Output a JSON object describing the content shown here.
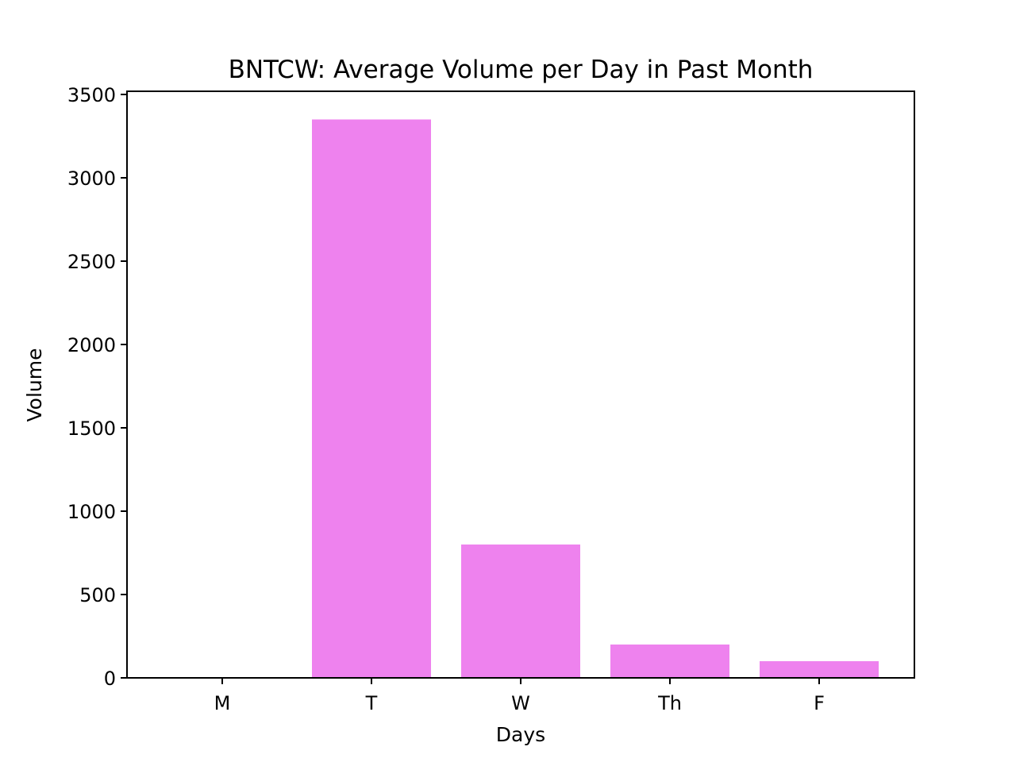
{
  "chart_data": {
    "type": "bar",
    "title": "BNTCW: Average Volume per Day in Past Month",
    "xlabel": "Days",
    "ylabel": "Volume",
    "categories": [
      "M",
      "T",
      "W",
      "Th",
      "F"
    ],
    "values": [
      0,
      3350,
      800,
      200,
      100
    ],
    "ylim": [
      0,
      3500
    ],
    "yticks": [
      0,
      500,
      1000,
      1500,
      2000,
      2500,
      3000,
      3500
    ],
    "bar_color": "#ee82ee",
    "grid": false,
    "legend": "none"
  }
}
